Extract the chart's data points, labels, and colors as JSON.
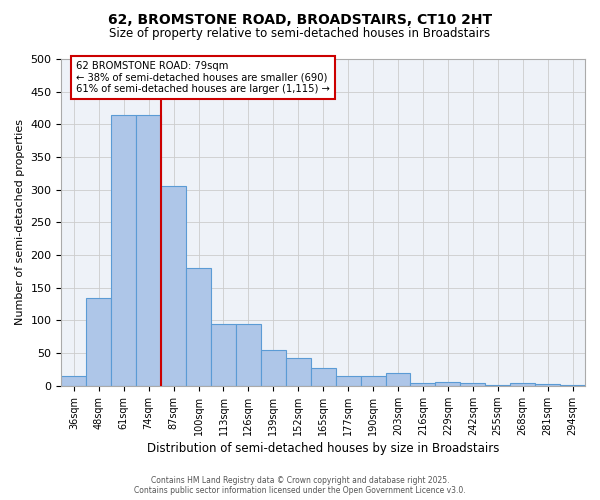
{
  "title1": "62, BROMSTONE ROAD, BROADSTAIRS, CT10 2HT",
  "title2": "Size of property relative to semi-detached houses in Broadstairs",
  "xlabel": "Distribution of semi-detached houses by size in Broadstairs",
  "ylabel": "Number of semi-detached properties",
  "categories": [
    "36sqm",
    "48sqm",
    "61sqm",
    "74sqm",
    "87sqm",
    "100sqm",
    "113sqm",
    "126sqm",
    "139sqm",
    "152sqm",
    "165sqm",
    "177sqm",
    "190sqm",
    "203sqm",
    "216sqm",
    "229sqm",
    "242sqm",
    "255sqm",
    "268sqm",
    "281sqm",
    "294sqm"
  ],
  "values": [
    15,
    135,
    415,
    415,
    305,
    180,
    95,
    95,
    55,
    42,
    27,
    15,
    15,
    20,
    5,
    6,
    5,
    1,
    4,
    3,
    2
  ],
  "bar_color": "#aec6e8",
  "bar_edge_color": "#5b9bd5",
  "red_line_x": 3.5,
  "annotation_text1": "62 BROMSTONE ROAD: 79sqm",
  "annotation_text2": "← 38% of semi-detached houses are smaller (690)",
  "annotation_text3": "61% of semi-detached houses are larger (1,115) →",
  "grid_color": "#cccccc",
  "background_color": "#eef2f8",
  "footer1": "Contains HM Land Registry data © Crown copyright and database right 2025.",
  "footer2": "Contains public sector information licensed under the Open Government Licence v3.0.",
  "ylim": [
    0,
    500
  ],
  "yticks": [
    0,
    50,
    100,
    150,
    200,
    250,
    300,
    350,
    400,
    450,
    500
  ]
}
